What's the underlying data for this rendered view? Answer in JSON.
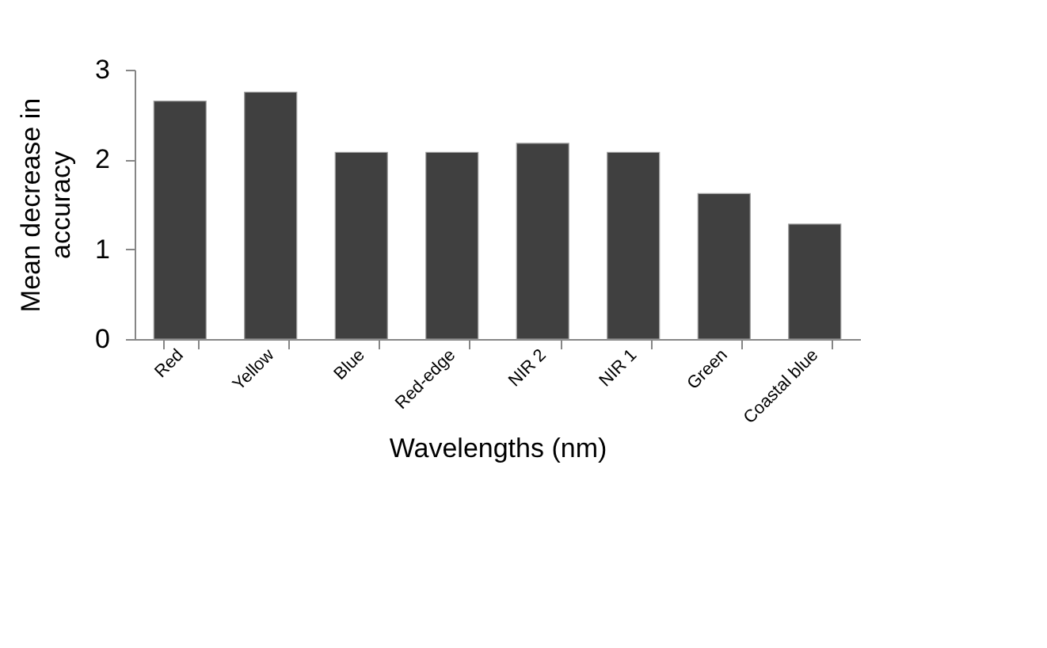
{
  "chart_data": {
    "type": "bar",
    "categories": [
      "Red",
      "Yellow",
      "Blue",
      "Red-edge",
      "NIR 2",
      "NIR 1",
      "Green",
      "Coastal blue"
    ],
    "values": [
      2.65,
      2.75,
      2.08,
      2.08,
      2.18,
      2.08,
      1.62,
      1.28
    ],
    "color": "#404040",
    "xlabel": "Wavelengths (nm)",
    "ylabel": "Mean decrease in accuracy",
    "ylim": [
      0,
      3
    ],
    "yticks": [
      0,
      1,
      2,
      3
    ],
    "grid": false
  }
}
